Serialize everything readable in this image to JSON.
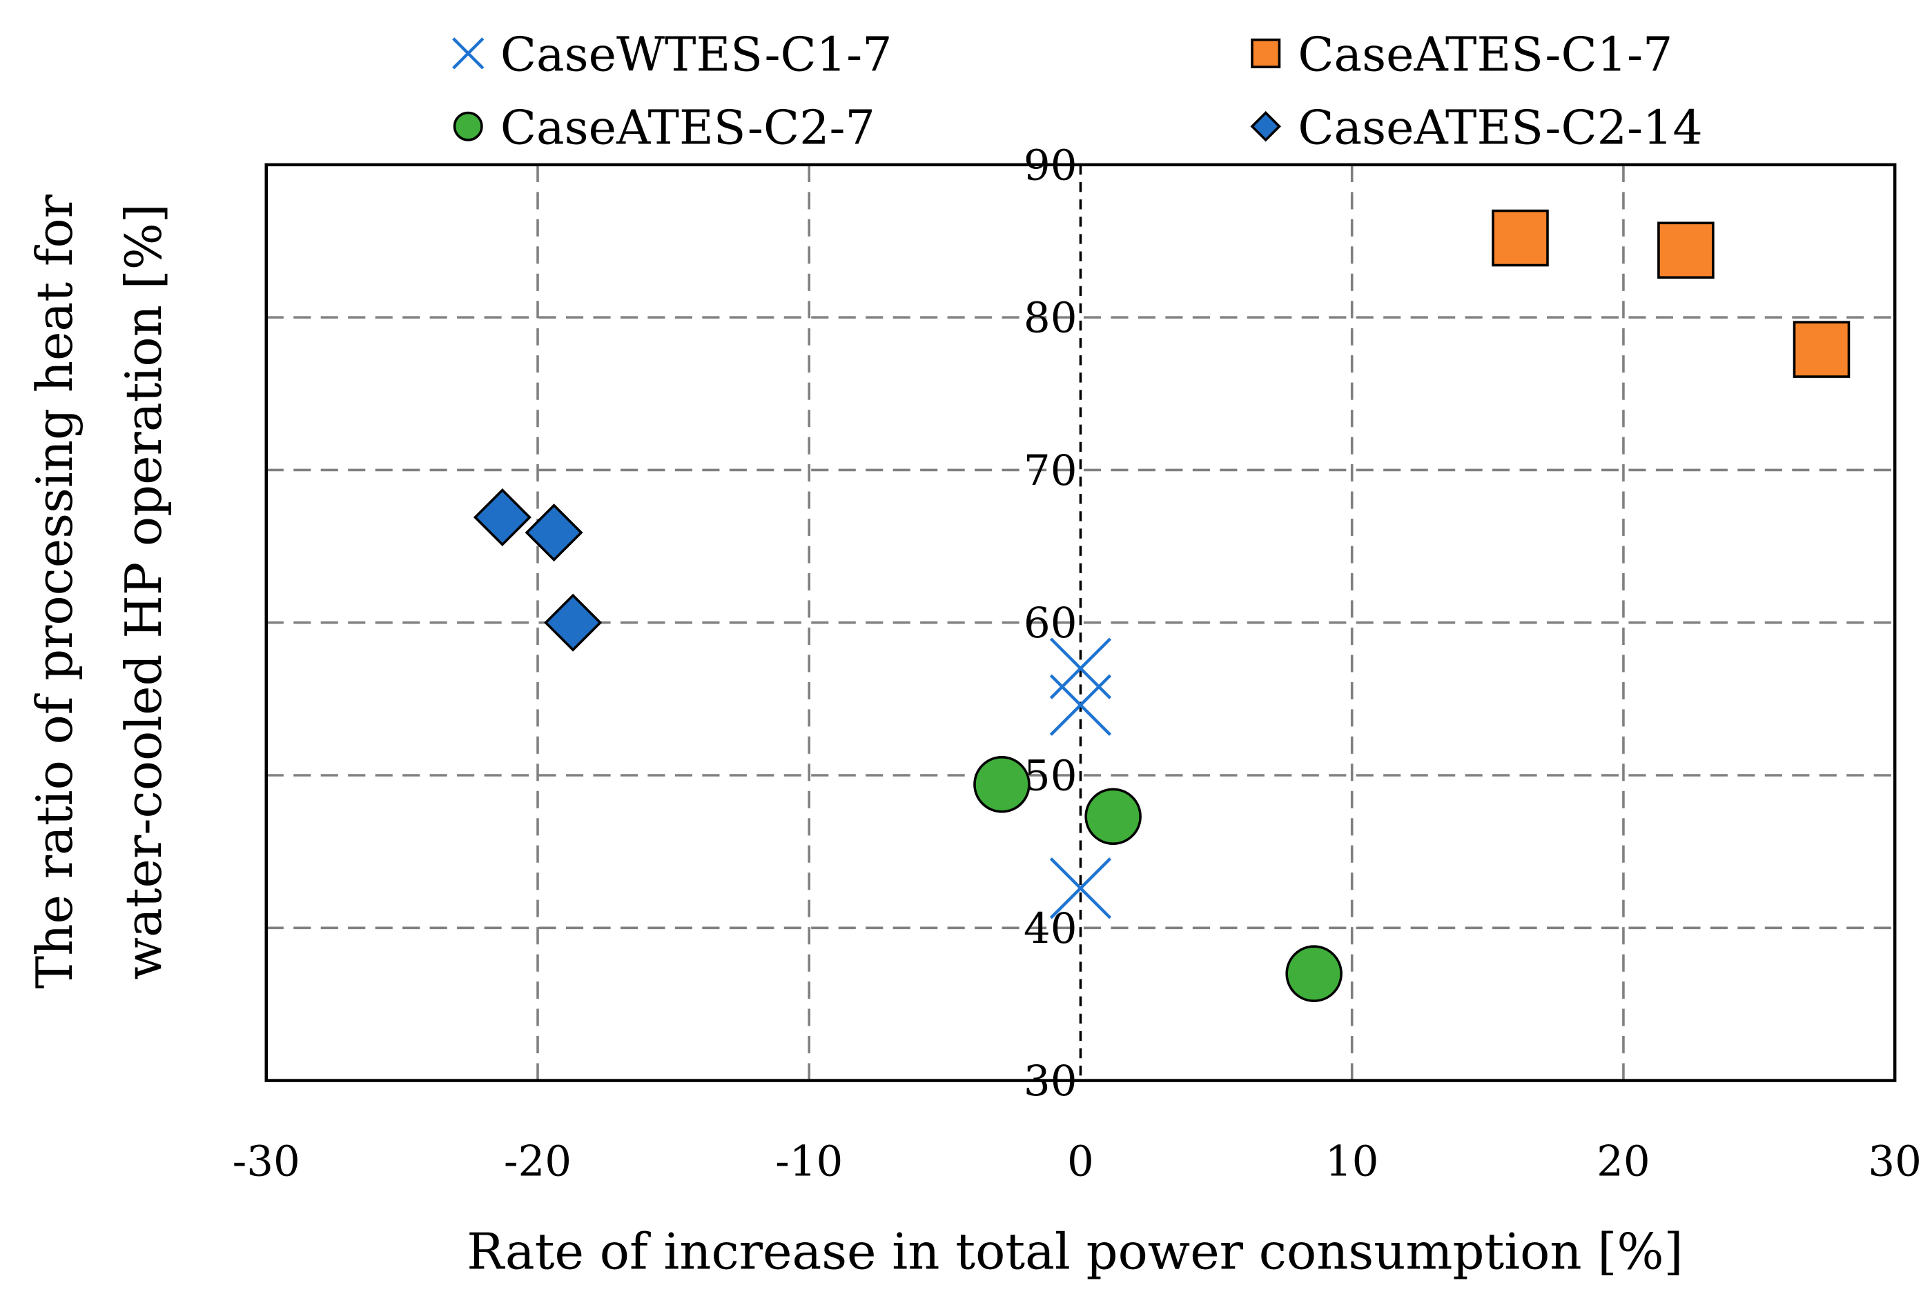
{
  "chart_data": {
    "type": "scatter",
    "title": "",
    "xlabel": "Rate of increase in total power consumption [%]",
    "ylabel_lines": [
      "The ratio of processing heat for",
      "water-cooled HP operation [%]"
    ],
    "xlim": [
      -30,
      30
    ],
    "ylim": [
      30,
      90
    ],
    "xticks": [
      -30,
      -20,
      -10,
      0,
      10,
      20,
      30
    ],
    "yticks": [
      30,
      40,
      50,
      60,
      70,
      80,
      90
    ],
    "grid": true,
    "legend_position": "top",
    "series": [
      {
        "name": "CaseWTES-C1-7",
        "marker": "x",
        "color": "#1f74d1",
        "points": [
          [
            0,
            57.0
          ],
          [
            0,
            54.6
          ],
          [
            0,
            42.6
          ]
        ]
      },
      {
        "name": "CaseATES-C1-7",
        "marker": "square",
        "color": "#f7832a",
        "points": [
          [
            16.2,
            85.2
          ],
          [
            22.3,
            84.4
          ],
          [
            27.3,
            77.9
          ]
        ]
      },
      {
        "name": "CaseATES-C2-7",
        "marker": "circle",
        "color": "#3fae3a",
        "points": [
          [
            -2.9,
            49.4
          ],
          [
            1.2,
            47.3
          ],
          [
            8.6,
            37.0
          ]
        ]
      },
      {
        "name": "CaseATES-C2-14",
        "marker": "diamond",
        "color": "#1f6fc6",
        "points": [
          [
            -21.3,
            66.9
          ],
          [
            -19.4,
            65.9
          ],
          [
            -18.7,
            60.0
          ]
        ]
      }
    ]
  }
}
